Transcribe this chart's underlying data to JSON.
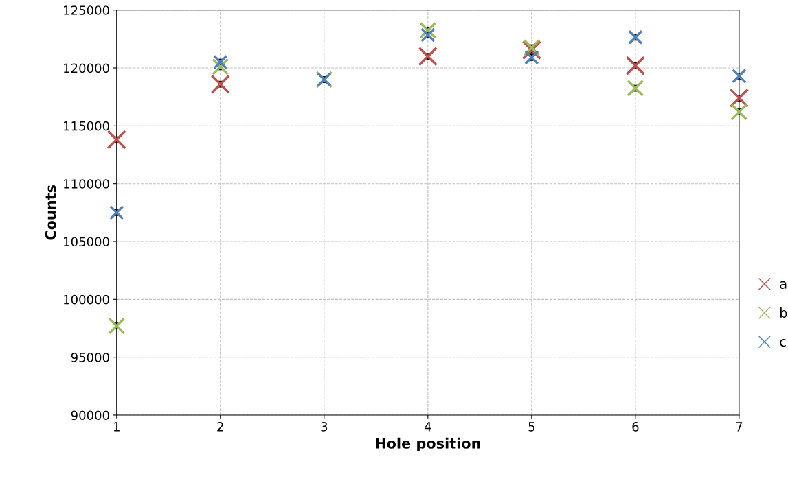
{
  "chart_data": {
    "type": "scatter",
    "xlabel": "Hole position",
    "ylabel": "Counts",
    "x": [
      1,
      2,
      3,
      4,
      5,
      6,
      7
    ],
    "series": [
      {
        "name": "a",
        "color": "#c0504d",
        "values": [
          113800,
          118600,
          null,
          121000,
          121550,
          120200,
          117400
        ],
        "errors": [
          250,
          250,
          null,
          250,
          250,
          250,
          250
        ]
      },
      {
        "name": "b",
        "color": "#9bbb59",
        "values": [
          97700,
          120100,
          119000,
          123250,
          121750,
          118250,
          116200
        ],
        "errors": [
          250,
          250,
          250,
          250,
          250,
          250,
          250
        ]
      },
      {
        "name": "c",
        "color": "#4f81bd",
        "values": [
          107500,
          120500,
          119000,
          122850,
          120900,
          122650,
          119300
        ],
        "errors": [
          250,
          250,
          250,
          250,
          250,
          250,
          250
        ]
      }
    ],
    "xlim": [
      1,
      7
    ],
    "xticks": [
      1,
      2,
      3,
      4,
      5,
      6,
      7
    ],
    "ylim": [
      90000,
      125000
    ],
    "yticks": [
      90000,
      95000,
      100000,
      105000,
      110000,
      115000,
      120000,
      125000
    ],
    "grid": true,
    "legend": "right",
    "marker": "cross"
  }
}
